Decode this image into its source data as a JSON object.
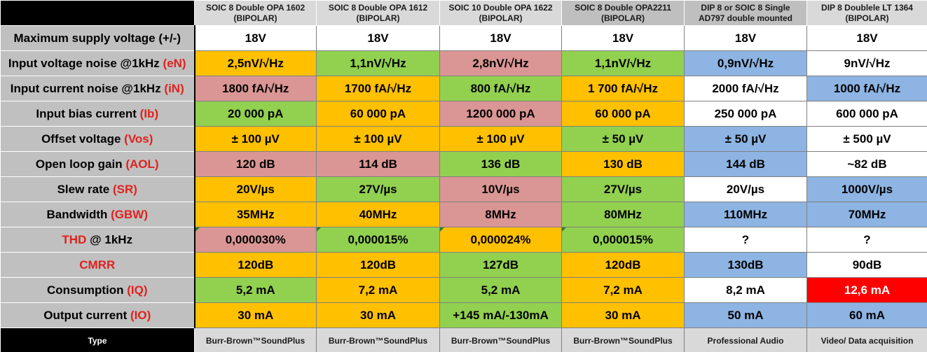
{
  "columns": [
    {
      "line1": "SOIC 8 Double OPA 1602",
      "line2": "(BIPOLAR)"
    },
    {
      "line1": "SOIC 8 Double OPA 1612",
      "line2": "(BIPOLAR)"
    },
    {
      "line1": "SOIC 10 Double OPA 1622",
      "line2": "(BIPOLAR)"
    },
    {
      "line1": "SOIC 8 Double OPA2211",
      "line2": "(BIPOLAR)"
    },
    {
      "line1": "DIP 8 or SOIC 8 Single",
      "line2": "AD797 double mounted"
    },
    {
      "line1": "DIP 8 Doublele LT 1364",
      "line2": "(BIPOLAR)"
    }
  ],
  "rows": [
    {
      "label": "Maximum supply voltage (+/-)",
      "abbr": "",
      "values": [
        "18V",
        "18V",
        "18V",
        "18V",
        "18V",
        "18V"
      ],
      "colors": [
        "white",
        "white",
        "white",
        "white",
        "white",
        "white"
      ]
    },
    {
      "label": "Input voltage noise @1kHz ",
      "abbr": "(eN)",
      "values": [
        "2,5nV/√Hz",
        "1,1nV/√Hz",
        "2,8nV/√Hz",
        "1,1nV/√Hz",
        "0,9nV/√Hz",
        "9nV/√Hz"
      ],
      "colors": [
        "orange",
        "green",
        "pink",
        "green",
        "blue",
        "white"
      ]
    },
    {
      "label": "Input current noise @1kHz ",
      "abbr": "(iN)",
      "values": [
        "1800 fA/√Hz",
        "1700 fA/√Hz",
        "800 fA/√Hz",
        "1 700 fA/√Hz",
        "2000 fA/√Hz",
        "1000 fA/√Hz"
      ],
      "colors": [
        "pink",
        "orange",
        "green",
        "orange",
        "white",
        "blue"
      ]
    },
    {
      "label": "Input bias current ",
      "abbr": "(Ib)",
      "values": [
        "20 000 pA",
        "60 000 pA",
        "1200 000 pA",
        "60 000 pA",
        "250 000 pA",
        "600 000 pA"
      ],
      "colors": [
        "green",
        "orange",
        "pink",
        "orange",
        "white",
        "white"
      ]
    },
    {
      "label": "Offset voltage ",
      "abbr": "(Vos)",
      "values": [
        "± 100 µV",
        "± 100 µV",
        "± 100 µV",
        "± 50 µV",
        "± 50 µV",
        "± 500 µV"
      ],
      "colors": [
        "orange",
        "orange",
        "orange",
        "green",
        "blue",
        "white"
      ]
    },
    {
      "label": "Open loop gain ",
      "abbr": "(AOL)",
      "values": [
        "120 dB",
        "114 dB",
        "136 dB",
        "130 dB",
        "144 dB",
        "~82 dB"
      ],
      "colors": [
        "pink",
        "pink",
        "green",
        "orange",
        "blue",
        "white"
      ]
    },
    {
      "label": "Slew rate ",
      "abbr": "(SR)",
      "values": [
        "20V/µs",
        "27V/µs",
        "10V/µs",
        "27V/µs",
        "20V/µs",
        "1000V/µs"
      ],
      "colors": [
        "orange",
        "green",
        "pink",
        "green",
        "white",
        "blue"
      ]
    },
    {
      "label": "Bandwidth ",
      "abbr": "(GBW)",
      "values": [
        "35MHz",
        "40MHz",
        "8MHz",
        "80MHz",
        "110MHz",
        "70MHz"
      ],
      "colors": [
        "orange",
        "orange",
        "pink",
        "green",
        "blue",
        "blue"
      ]
    },
    {
      "label_red": "THD",
      "label_rest": " @ 1kHz",
      "values": [
        "0,000030%",
        "0,000015%",
        "0,000024%",
        "0,000015%",
        "?",
        "?"
      ],
      "colors": [
        "pink",
        "green",
        "orange",
        "green",
        "white",
        "white"
      ],
      "flags": [
        true,
        true,
        true,
        true,
        false,
        false
      ]
    },
    {
      "label_red": "CMRR",
      "label_rest": "",
      "values": [
        "120dB",
        "120dB",
        "127dB",
        "120dB",
        "130dB",
        "90dB"
      ],
      "colors": [
        "orange",
        "orange",
        "green",
        "orange",
        "blue",
        "white"
      ]
    },
    {
      "label": "Consumption ",
      "abbr": "(IQ)",
      "values": [
        "5,2 mA",
        "7,2 mA",
        "5,2 mA",
        "7,2 mA",
        "8,2 mA",
        "12,6 mA"
      ],
      "colors": [
        "green",
        "orange",
        "green",
        "orange",
        "white",
        "red"
      ]
    },
    {
      "label": "Output current ",
      "abbr": "(IO)",
      "values": [
        "30 mA",
        "30 mA",
        "+145 mA/-130mA",
        "30 mA",
        "50 mA",
        "60 mA"
      ],
      "colors": [
        "orange",
        "orange",
        "green",
        "orange",
        "blue",
        "blue"
      ]
    }
  ],
  "type_row": {
    "label": "Type",
    "values": [
      "Burr-Brown™SoundPlus",
      "Burr-Brown™SoundPlus",
      "Burr-Brown™SoundPlus",
      "Burr-Brown™SoundPlus",
      "Professional Audio",
      "Video/ Data acquisition"
    ]
  },
  "palette": {
    "orange": "#ffc000",
    "green": "#92d050",
    "pink": "#da9694",
    "blue": "#8db4e2",
    "white": "#ffffff",
    "red": "#ff0000"
  }
}
